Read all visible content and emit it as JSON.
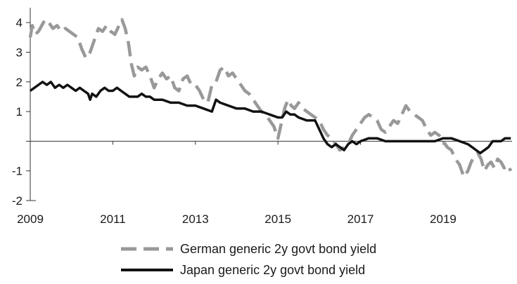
{
  "chart_data": {
    "type": "line",
    "title": "",
    "xlabel": "",
    "ylabel": "",
    "xlim": [
      2009,
      2020.67
    ],
    "ylim": [
      -2,
      4.5
    ],
    "grid": false,
    "legend_position": "bottom",
    "x_ticks": [
      2009,
      2011,
      2013,
      2015,
      2017,
      2019
    ],
    "y_ticks": [
      -2,
      -1,
      0,
      1,
      2,
      3,
      4
    ],
    "y_tick_labels": [
      "-2",
      "-1",
      "",
      "1",
      "2",
      "3",
      "4"
    ],
    "series": [
      {
        "name": "German generic 2y govt bond yield",
        "color": "#999999",
        "style": "dashed",
        "x": [
          2009.0,
          2009.05,
          2009.12,
          2009.2,
          2009.28,
          2009.36,
          2009.45,
          2009.55,
          2009.65,
          2009.75,
          2009.85,
          2009.95,
          2010.05,
          2010.15,
          2010.25,
          2010.35,
          2010.45,
          2010.55,
          2010.65,
          2010.75,
          2010.85,
          2010.95,
          2011.05,
          2011.15,
          2011.22,
          2011.3,
          2011.38,
          2011.45,
          2011.52,
          2011.6,
          2011.7,
          2011.8,
          2011.9,
          2012.0,
          2012.1,
          2012.2,
          2012.3,
          2012.4,
          2012.5,
          2012.6,
          2012.7,
          2012.8,
          2012.9,
          2013.0,
          2013.1,
          2013.2,
          2013.3,
          2013.4,
          2013.5,
          2013.6,
          2013.7,
          2013.8,
          2013.9,
          2014.0,
          2014.1,
          2014.2,
          2014.3,
          2014.4,
          2014.5,
          2014.6,
          2014.7,
          2014.8,
          2014.9,
          2015.0,
          2015.08,
          2015.16,
          2015.24,
          2015.32,
          2015.4,
          2015.5,
          2015.6,
          2015.7,
          2015.8,
          2015.9,
          2016.0,
          2016.1,
          2016.2,
          2016.3,
          2016.4,
          2016.5,
          2016.6,
          2016.7,
          2016.8,
          2016.9,
          2017.0,
          2017.1,
          2017.2,
          2017.3,
          2017.4,
          2017.5,
          2017.6,
          2017.7,
          2017.8,
          2017.9,
          2018.0,
          2018.1,
          2018.2,
          2018.3,
          2018.4,
          2018.5,
          2018.6,
          2018.7,
          2018.8,
          2018.9,
          2019.0,
          2019.1,
          2019.2,
          2019.3,
          2019.4,
          2019.5,
          2019.6,
          2019.68,
          2019.76,
          2019.84,
          2019.92,
          2020.0,
          2020.08,
          2020.16,
          2020.24,
          2020.32,
          2020.4,
          2020.48,
          2020.56,
          2020.64
        ],
        "values": [
          3.5,
          3.9,
          3.6,
          3.7,
          3.9,
          4.1,
          4.0,
          3.8,
          3.9,
          3.7,
          3.8,
          3.7,
          3.6,
          3.5,
          3.1,
          2.8,
          3.0,
          3.4,
          3.8,
          3.7,
          3.9,
          3.7,
          3.6,
          3.9,
          4.1,
          3.8,
          3.3,
          2.6,
          2.2,
          2.5,
          2.4,
          2.5,
          2.2,
          1.8,
          2.1,
          2.3,
          2.1,
          2.2,
          1.8,
          1.7,
          2.1,
          2.2,
          1.9,
          1.9,
          1.7,
          1.4,
          1.3,
          1.9,
          2.0,
          2.4,
          2.5,
          2.2,
          2.3,
          2.1,
          1.9,
          1.7,
          1.6,
          1.4,
          1.2,
          1.0,
          0.9,
          0.7,
          0.5,
          0.1,
          0.6,
          1.1,
          1.4,
          1.2,
          1.1,
          1.3,
          1.1,
          1.0,
          0.9,
          0.8,
          0.7,
          0.4,
          0.2,
          0.1,
          -0.1,
          -0.3,
          -0.2,
          -0.1,
          0.2,
          0.4,
          0.6,
          0.8,
          0.9,
          0.8,
          0.7,
          0.4,
          0.3,
          0.5,
          0.7,
          0.6,
          0.9,
          1.2,
          1.0,
          0.9,
          0.8,
          0.7,
          0.4,
          0.2,
          0.3,
          0.2,
          0.0,
          -0.2,
          -0.3,
          -0.6,
          -0.8,
          -1.2,
          -1.0,
          -0.7,
          -0.5,
          -0.4,
          -0.6,
          -1.0,
          -0.8,
          -0.7,
          -0.9,
          -0.6,
          -0.7,
          -0.9,
          -0.8,
          -1.0
        ]
      },
      {
        "name": "Japan generic 2y govt bond yield",
        "color": "#111111",
        "style": "solid",
        "x": [
          2009.0,
          2009.1,
          2009.2,
          2009.3,
          2009.4,
          2009.5,
          2009.6,
          2009.7,
          2009.8,
          2009.9,
          2010.0,
          2010.1,
          2010.2,
          2010.3,
          2010.4,
          2010.45,
          2010.5,
          2010.6,
          2010.7,
          2010.8,
          2010.9,
          2011.0,
          2011.1,
          2011.2,
          2011.3,
          2011.4,
          2011.5,
          2011.6,
          2011.7,
          2011.8,
          2011.9,
          2012.0,
          2012.2,
          2012.4,
          2012.6,
          2012.8,
          2013.0,
          2013.2,
          2013.4,
          2013.5,
          2013.6,
          2013.8,
          2014.0,
          2014.2,
          2014.4,
          2014.6,
          2014.8,
          2015.0,
          2015.1,
          2015.2,
          2015.3,
          2015.4,
          2015.5,
          2015.7,
          2015.9,
          2016.0,
          2016.1,
          2016.2,
          2016.3,
          2016.4,
          2016.5,
          2016.6,
          2016.7,
          2016.8,
          2016.9,
          2017.0,
          2017.2,
          2017.4,
          2017.6,
          2017.8,
          2018.0,
          2018.2,
          2018.4,
          2018.6,
          2018.8,
          2019.0,
          2019.2,
          2019.4,
          2019.6,
          2019.7,
          2019.8,
          2019.9,
          2020.0,
          2020.1,
          2020.2,
          2020.3,
          2020.4,
          2020.5,
          2020.64
        ],
        "values": [
          1.7,
          1.8,
          1.9,
          2.0,
          1.9,
          2.0,
          1.8,
          1.9,
          1.8,
          1.9,
          1.8,
          1.7,
          1.8,
          1.7,
          1.6,
          1.4,
          1.6,
          1.5,
          1.7,
          1.8,
          1.7,
          1.7,
          1.8,
          1.7,
          1.6,
          1.5,
          1.5,
          1.5,
          1.6,
          1.5,
          1.5,
          1.4,
          1.4,
          1.3,
          1.3,
          1.2,
          1.2,
          1.1,
          1.0,
          1.4,
          1.3,
          1.2,
          1.1,
          1.1,
          1.0,
          1.0,
          0.9,
          0.8,
          0.8,
          1.0,
          0.9,
          0.9,
          0.8,
          0.7,
          0.7,
          0.4,
          0.1,
          -0.1,
          -0.2,
          -0.1,
          -0.2,
          -0.3,
          -0.1,
          0.0,
          -0.1,
          0.0,
          0.1,
          0.1,
          0.0,
          0.0,
          0.0,
          0.0,
          0.0,
          0.0,
          0.0,
          0.1,
          0.1,
          0.0,
          -0.1,
          -0.2,
          -0.3,
          -0.4,
          -0.3,
          -0.2,
          0.0,
          0.0,
          0.0,
          0.1,
          0.1
        ]
      }
    ]
  }
}
